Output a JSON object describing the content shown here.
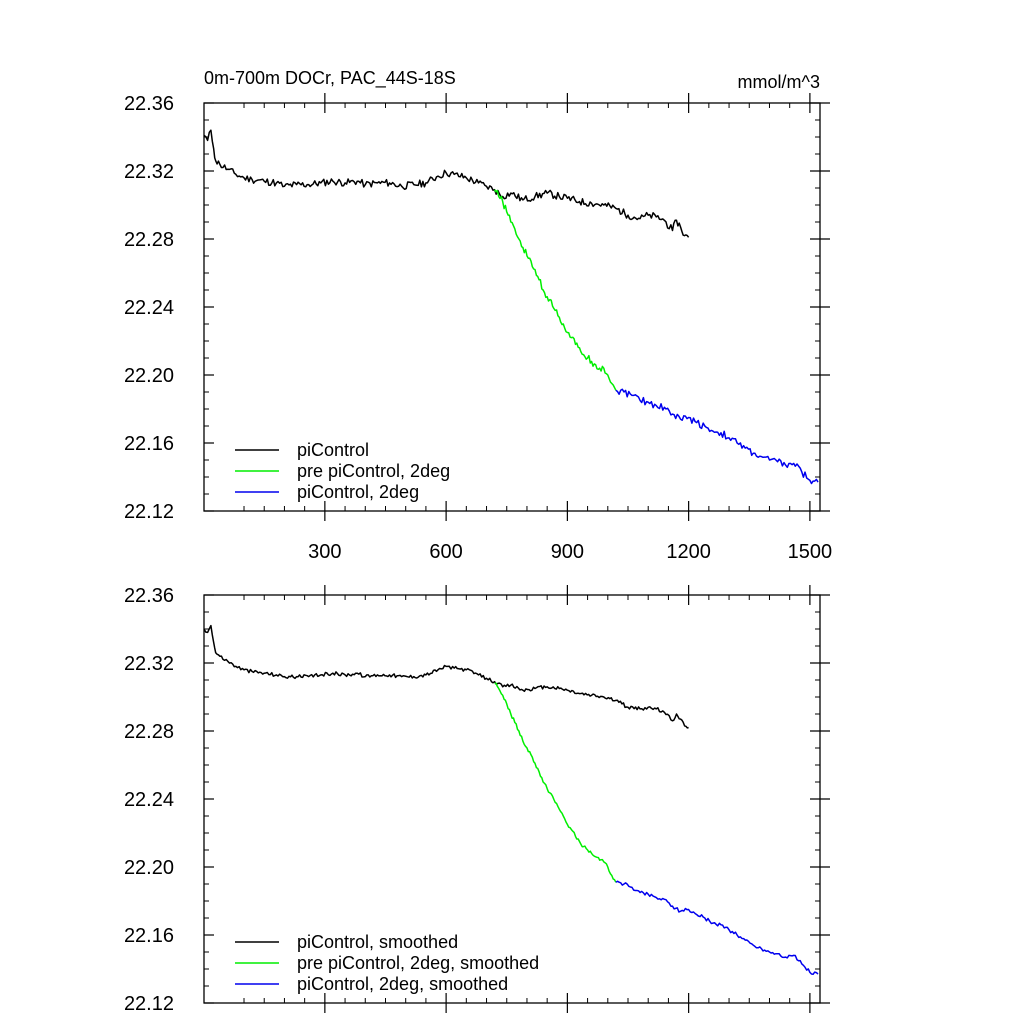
{
  "chart_data": [
    {
      "type": "line",
      "title": "0m-700m DOCr, PAC_44S-18S",
      "units": "mmol/m^3",
      "xlim": [
        1,
        1525
      ],
      "ylim": [
        22.12,
        22.36
      ],
      "x_ticks": [
        300,
        600,
        900,
        1200,
        1500
      ],
      "x_tick_labels": [
        "300",
        "600",
        "900",
        "1200",
        "1500"
      ],
      "y_ticks": [
        22.12,
        22.16,
        22.2,
        22.24,
        22.28,
        22.32,
        22.36
      ],
      "y_tick_labels": [
        "22.12",
        "22.16",
        "22.20",
        "22.24",
        "22.28",
        "22.32",
        "22.36"
      ],
      "legend_position": "bottom-left",
      "series": [
        {
          "name": "piControl",
          "color": "#000000",
          "x": [
            1,
            10,
            18,
            25,
            30,
            40,
            60,
            80,
            100,
            120,
            150,
            180,
            200,
            230,
            260,
            290,
            320,
            350,
            380,
            400,
            430,
            460,
            490,
            520,
            550,
            580,
            600,
            620,
            650,
            680,
            700,
            720,
            740,
            760,
            790,
            820,
            850,
            880,
            900,
            930,
            960,
            990,
            1020,
            1050,
            1080,
            1100,
            1120,
            1140,
            1160,
            1170,
            1180,
            1190,
            1200
          ],
          "y": [
            22.341,
            22.338,
            22.344,
            22.333,
            22.326,
            22.324,
            22.321,
            22.318,
            22.316,
            22.315,
            22.314,
            22.313,
            22.311,
            22.312,
            22.312,
            22.313,
            22.314,
            22.313,
            22.314,
            22.312,
            22.313,
            22.313,
            22.311,
            22.312,
            22.313,
            22.317,
            22.319,
            22.318,
            22.316,
            22.313,
            22.311,
            22.309,
            22.305,
            22.307,
            22.303,
            22.305,
            22.307,
            22.305,
            22.304,
            22.302,
            22.301,
            22.3,
            22.298,
            22.294,
            22.292,
            22.294,
            22.293,
            22.291,
            22.285,
            22.291,
            22.287,
            22.282,
            22.281
          ]
        },
        {
          "name": "pre piControl, 2deg",
          "color": "#00ee00",
          "x": [
            720,
            730,
            740,
            750,
            760,
            770,
            780,
            790,
            800,
            810,
            820,
            830,
            840,
            850,
            860,
            870,
            880,
            890,
            900,
            910,
            920,
            930,
            940,
            950,
            960,
            970,
            980,
            990,
            1000,
            1010,
            1020
          ],
          "y": [
            22.309,
            22.305,
            22.302,
            22.296,
            22.29,
            22.286,
            22.28,
            22.275,
            22.27,
            22.267,
            22.262,
            22.256,
            22.25,
            22.246,
            22.244,
            22.238,
            22.234,
            22.23,
            22.225,
            22.222,
            22.218,
            22.216,
            22.212,
            22.21,
            22.208,
            22.206,
            22.204,
            22.204,
            22.2,
            22.195,
            22.191
          ]
        },
        {
          "name": "piControl, 2deg",
          "color": "#0000ee",
          "x": [
            1020,
            1040,
            1060,
            1080,
            1100,
            1120,
            1140,
            1160,
            1180,
            1200,
            1220,
            1240,
            1260,
            1280,
            1300,
            1320,
            1340,
            1360,
            1380,
            1400,
            1420,
            1440,
            1460,
            1480,
            1500,
            1520
          ],
          "y": [
            22.191,
            22.19,
            22.188,
            22.185,
            22.184,
            22.182,
            22.181,
            22.177,
            22.174,
            22.175,
            22.172,
            22.17,
            22.167,
            22.166,
            22.163,
            22.16,
            22.157,
            22.154,
            22.152,
            22.15,
            22.149,
            22.147,
            22.148,
            22.143,
            22.138,
            22.137
          ]
        }
      ]
    },
    {
      "type": "line",
      "xlim": [
        1,
        1525
      ],
      "ylim": [
        22.12,
        22.36
      ],
      "x_ticks": [
        300,
        600,
        900,
        1200,
        1500
      ],
      "y_ticks": [
        22.12,
        22.16,
        22.2,
        22.24,
        22.28,
        22.32,
        22.36
      ],
      "y_tick_labels": [
        "22.12",
        "22.16",
        "22.20",
        "22.24",
        "22.28",
        "22.32",
        "22.36"
      ],
      "legend_position": "bottom-left",
      "series": [
        {
          "name": "piControl, smoothed",
          "color": "#000000",
          "x": [
            1,
            10,
            18,
            25,
            30,
            40,
            60,
            80,
            100,
            120,
            150,
            180,
            200,
            230,
            260,
            290,
            320,
            350,
            380,
            400,
            430,
            460,
            490,
            520,
            550,
            580,
            600,
            620,
            650,
            680,
            700,
            720,
            740,
            760,
            790,
            820,
            850,
            880,
            900,
            930,
            960,
            990,
            1020,
            1050,
            1080,
            1100,
            1120,
            1140,
            1160,
            1170,
            1180,
            1190,
            1200
          ],
          "y": [
            22.34,
            22.338,
            22.342,
            22.332,
            22.326,
            22.324,
            22.321,
            22.318,
            22.316,
            22.315,
            22.314,
            22.313,
            22.312,
            22.312,
            22.312,
            22.313,
            22.314,
            22.313,
            22.314,
            22.312,
            22.313,
            22.313,
            22.312,
            22.312,
            22.313,
            22.316,
            22.318,
            22.317,
            22.316,
            22.313,
            22.311,
            22.309,
            22.306,
            22.307,
            22.304,
            22.305,
            22.306,
            22.305,
            22.304,
            22.302,
            22.301,
            22.3,
            22.298,
            22.294,
            22.293,
            22.294,
            22.293,
            22.291,
            22.286,
            22.29,
            22.287,
            22.283,
            22.282
          ]
        },
        {
          "name": "pre piControl, 2deg, smoothed",
          "color": "#00ee00",
          "x": [
            720,
            730,
            740,
            750,
            760,
            770,
            780,
            790,
            800,
            810,
            820,
            830,
            840,
            850,
            860,
            870,
            880,
            890,
            900,
            910,
            920,
            930,
            940,
            950,
            960,
            970,
            980,
            990,
            1000,
            1010,
            1020
          ],
          "y": [
            22.308,
            22.305,
            22.301,
            22.296,
            22.29,
            22.285,
            22.28,
            22.274,
            22.27,
            22.266,
            22.261,
            22.256,
            22.25,
            22.246,
            22.243,
            22.238,
            22.234,
            22.23,
            22.225,
            22.222,
            22.218,
            22.215,
            22.212,
            22.21,
            22.208,
            22.206,
            22.204,
            22.203,
            22.2,
            22.195,
            22.191
          ]
        },
        {
          "name": "piControl, 2deg, smoothed",
          "color": "#0000ee",
          "x": [
            1020,
            1040,
            1060,
            1080,
            1100,
            1120,
            1140,
            1160,
            1180,
            1200,
            1220,
            1240,
            1260,
            1280,
            1300,
            1320,
            1340,
            1360,
            1380,
            1400,
            1420,
            1440,
            1460,
            1480,
            1500,
            1520
          ],
          "y": [
            22.191,
            22.19,
            22.188,
            22.185,
            22.184,
            22.182,
            22.181,
            22.177,
            22.174,
            22.175,
            22.172,
            22.17,
            22.167,
            22.166,
            22.163,
            22.16,
            22.157,
            22.154,
            22.152,
            22.15,
            22.149,
            22.147,
            22.148,
            22.143,
            22.138,
            22.137
          ]
        }
      ]
    }
  ]
}
